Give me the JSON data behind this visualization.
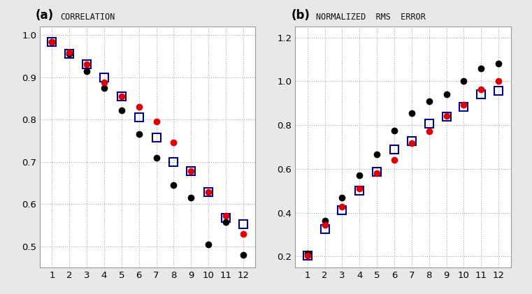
{
  "months": [
    1,
    2,
    3,
    4,
    5,
    6,
    7,
    8,
    9,
    10,
    11,
    12
  ],
  "corr_black": [
    0.983,
    0.955,
    0.914,
    0.875,
    0.822,
    0.765,
    0.71,
    0.645,
    0.615,
    0.505,
    0.558,
    0.48
  ],
  "corr_red": [
    0.984,
    0.958,
    0.93,
    0.888,
    0.855,
    0.83,
    0.795,
    0.745,
    0.678,
    0.628,
    0.572,
    0.53
  ],
  "corr_blue": [
    0.984,
    0.955,
    0.93,
    0.9,
    0.855,
    0.805,
    0.758,
    0.7,
    0.678,
    0.628,
    0.568,
    0.553
  ],
  "rms_black": [
    0.215,
    0.365,
    0.47,
    0.57,
    0.665,
    0.775,
    0.855,
    0.91,
    0.94,
    1.0,
    1.06,
    1.08
  ],
  "rms_red": [
    0.205,
    0.345,
    0.428,
    0.512,
    0.582,
    0.642,
    0.718,
    0.772,
    0.842,
    0.892,
    0.962,
    1.002
  ],
  "rms_blue": [
    0.205,
    0.325,
    0.412,
    0.502,
    0.588,
    0.688,
    0.728,
    0.808,
    0.838,
    0.882,
    0.942,
    0.958
  ],
  "ylim_a": [
    0.45,
    1.02
  ],
  "ylim_b": [
    0.15,
    1.25
  ],
  "yticks_a": [
    0.5,
    0.6,
    0.7,
    0.8,
    0.9,
    1.0
  ],
  "yticks_b": [
    0.2,
    0.4,
    0.6,
    0.8,
    1.0,
    1.2
  ],
  "bg_color": "#e8e8e8",
  "panel_color": "#ffffff",
  "grid_color": "#aaaaaa",
  "black_color": "#000000",
  "red_color": "#dd0000",
  "blue_color": "#00008b"
}
